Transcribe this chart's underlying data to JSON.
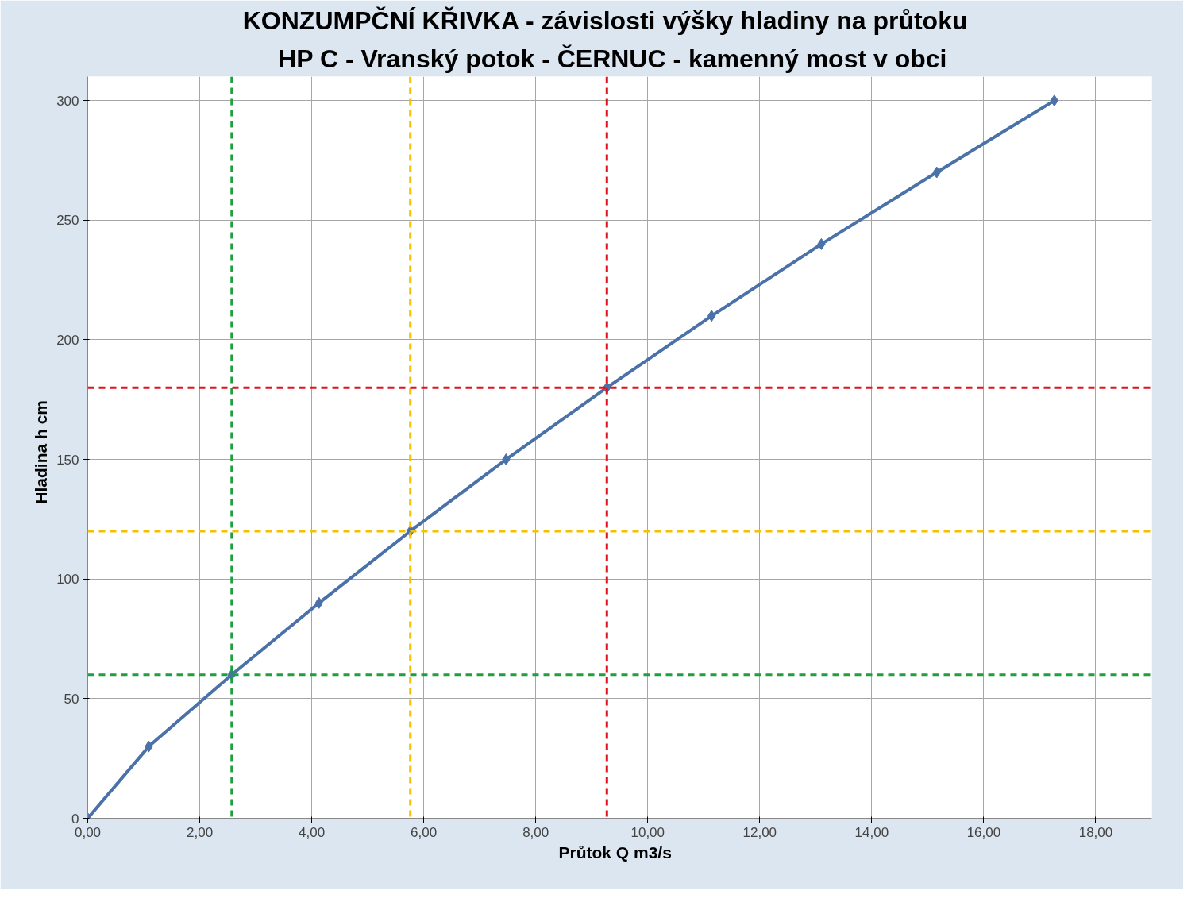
{
  "chart_data": {
    "type": "line",
    "title": "KONZUMPČNÍ KŘIVKA   -   závislosti výšky hladiny na průtoku",
    "subtitle": "HP C  -  Vranský potok - ČERNUC - kamenný most v obci",
    "xlabel": "Průtok  Q  m3/s",
    "ylabel": "Hladina  h  cm",
    "x": [
      0,
      1.09,
      2.57,
      4.13,
      5.76,
      7.47,
      9.27,
      11.14,
      13.1,
      15.16,
      17.26
    ],
    "series": [
      {
        "color": "#4a72a8",
        "values": [
          0,
          30,
          60,
          90,
          120,
          150,
          180,
          210,
          240,
          270,
          300
        ]
      }
    ],
    "marker": "diamond",
    "line_style": "solid",
    "xlim": [
      0,
      19
    ],
    "ylim": [
      0,
      310
    ],
    "xticks": [
      {
        "value": 0,
        "label": "0,00"
      },
      {
        "value": 2,
        "label": "2,00"
      },
      {
        "value": 4,
        "label": "4,00"
      },
      {
        "value": 6,
        "label": "6,00"
      },
      {
        "value": 8,
        "label": "8,00"
      },
      {
        "value": 10,
        "label": "10,00"
      },
      {
        "value": 12,
        "label": "12,00"
      },
      {
        "value": 14,
        "label": "14,00"
      },
      {
        "value": 16,
        "label": "16,00"
      },
      {
        "value": 18,
        "label": "18,00"
      }
    ],
    "yticks": [
      0,
      50,
      100,
      150,
      200,
      250,
      300
    ],
    "grid": true,
    "ref_lines": [
      {
        "axis": "x",
        "value": 2.57,
        "color": "#1fa040",
        "line_style": "dashed"
      },
      {
        "axis": "x",
        "value": 5.76,
        "color": "#f5c000",
        "line_style": "dashed"
      },
      {
        "axis": "x",
        "value": 9.27,
        "color": "#e0141e",
        "line_style": "dashed"
      },
      {
        "axis": "y",
        "value": 60,
        "color": "#1fa040",
        "line_style": "dashed"
      },
      {
        "axis": "y",
        "value": 120,
        "color": "#f5c000",
        "line_style": "dashed"
      },
      {
        "axis": "y",
        "value": 180,
        "color": "#e0141e",
        "line_style": "dashed"
      }
    ]
  }
}
